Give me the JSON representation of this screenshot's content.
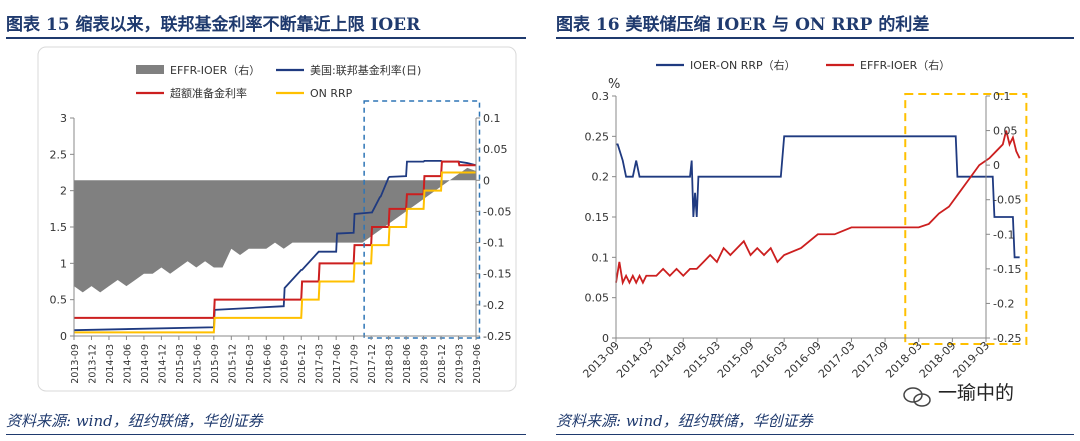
{
  "left": {
    "title": "图表 15   缩表以来，联邦基金利率不断靠近上限 IOER",
    "source": "资料来源: wind，纽约联储，华创证券"
  },
  "right": {
    "title": "图表 16   美联储压缩 IOER 与 ON RRP 的利差",
    "source": "资料来源: wind，纽约联储，华创证券"
  },
  "watermark": "一瑜中的",
  "colors": {
    "gray": "#808080",
    "navy": "#1f3a80",
    "red": "#cc1f1f",
    "yellow": "#ffc000",
    "blue_dash": "#2e75b6",
    "gold_dash": "#ffc000",
    "title": "#1f3a6e"
  },
  "chart_data": [
    {
      "type": "line",
      "x_ticks": [
        "2013-09",
        "2013-12",
        "2014-03",
        "2014-06",
        "2014-09",
        "2014-12",
        "2015-03",
        "2015-06",
        "2015-09",
        "2015-12",
        "2016-03",
        "2016-06",
        "2016-09",
        "2016-12",
        "2017-03",
        "2017-06",
        "2017-09",
        "2017-12",
        "2018-03",
        "2018-06",
        "2018-09",
        "2018-12",
        "2019-03",
        "2019-06"
      ],
      "y_left": {
        "ticks": [
          "0",
          "0.5",
          "1",
          "1.5",
          "2",
          "2.5",
          "3"
        ],
        "lim": [
          0,
          3
        ]
      },
      "y_right": {
        "ticks": [
          "0.1",
          "0.05",
          "0",
          "-0.05",
          "-0.1",
          "-0.15",
          "-0.2",
          "-0.25"
        ],
        "lim": [
          -0.25,
          0.1
        ]
      },
      "series": [
        {
          "name": "EFFR-IOER（右）",
          "axis": "right",
          "style": "area",
          "x": [
            0,
            0.5,
            1,
            1.5,
            2,
            2.5,
            3,
            3.5,
            4,
            4.5,
            5,
            5.5,
            6,
            6.5,
            7,
            7.5,
            8,
            8.5,
            9,
            9.5,
            10,
            10.5,
            11,
            11.5,
            12,
            12.5,
            13,
            13.5,
            14,
            14.5,
            15,
            15.5,
            16,
            16.5,
            17,
            17.5,
            18,
            18.5,
            19,
            19.5,
            20,
            20.5,
            21,
            21.5,
            22,
            22.5,
            23
          ],
          "values": [
            -0.17,
            -0.18,
            -0.17,
            -0.18,
            -0.17,
            -0.16,
            -0.17,
            -0.16,
            -0.15,
            -0.15,
            -0.14,
            -0.15,
            -0.14,
            -0.13,
            -0.14,
            -0.13,
            -0.14,
            -0.14,
            -0.11,
            -0.12,
            -0.11,
            -0.11,
            -0.11,
            -0.1,
            -0.11,
            -0.1,
            -0.1,
            -0.1,
            -0.1,
            -0.1,
            -0.1,
            -0.1,
            -0.1,
            -0.1,
            -0.09,
            -0.08,
            -0.07,
            -0.06,
            -0.05,
            -0.04,
            -0.03,
            -0.02,
            -0.01,
            0,
            0.01,
            0.02,
            0.015
          ]
        },
        {
          "name": "美国:联邦基金利率(日)",
          "axis": "left",
          "x": [
            0,
            8,
            8.05,
            12,
            12.05,
            13,
            13.05,
            14,
            14.05,
            15,
            15.05,
            16,
            16.05,
            17,
            17.05,
            17.5,
            17.55,
            18,
            18.05,
            19,
            19.05,
            20,
            20.05,
            21,
            21.05,
            22,
            22.5,
            23
          ],
          "values": [
            0.08,
            0.12,
            0.36,
            0.41,
            0.66,
            0.91,
            0.91,
            1.16,
            1.16,
            1.16,
            1.41,
            1.42,
            1.68,
            1.7,
            1.7,
            1.91,
            1.92,
            2.18,
            2.19,
            2.2,
            2.4,
            2.4,
            2.41,
            2.41,
            2.4,
            2.4,
            2.38,
            2.35
          ]
        },
        {
          "name": "超额准备金利率",
          "axis": "left",
          "x": [
            0,
            8,
            8.05,
            13,
            13.05,
            14,
            14.05,
            16,
            16.05,
            17,
            17.05,
            18,
            18.05,
            19,
            19.05,
            20,
            20.05,
            21,
            21.05,
            22,
            22.05,
            23
          ],
          "values": [
            0.25,
            0.25,
            0.5,
            0.5,
            0.75,
            0.75,
            1.0,
            1.0,
            1.25,
            1.25,
            1.5,
            1.5,
            1.75,
            1.75,
            1.95,
            1.95,
            2.2,
            2.2,
            2.4,
            2.4,
            2.35,
            2.35
          ]
        },
        {
          "name": "ON RRP",
          "axis": "left",
          "x": [
            0,
            8,
            8.05,
            13,
            13.05,
            14,
            14.05,
            16,
            16.05,
            17,
            17.05,
            18,
            18.05,
            19,
            19.05,
            20,
            20.05,
            21,
            21.05,
            22,
            22.05,
            23
          ],
          "values": [
            0.05,
            0.05,
            0.25,
            0.25,
            0.5,
            0.5,
            0.75,
            0.75,
            1.0,
            1.0,
            1.25,
            1.25,
            1.5,
            1.5,
            1.75,
            1.75,
            2.0,
            2.0,
            2.25,
            2.25,
            2.25,
            2.25
          ]
        }
      ],
      "highlight_range": [
        16.6,
        23.2
      ]
    },
    {
      "type": "line",
      "x_ticks": [
        "2013-09",
        "2014-03",
        "2014-09",
        "2015-03",
        "2015-09",
        "2016-03",
        "2016-09",
        "2017-03",
        "2017-09",
        "2018-03",
        "2018-09",
        "2019-03"
      ],
      "y_left": {
        "label": "%",
        "ticks": [
          "0",
          "0.05",
          "0.1",
          "0.15",
          "0.2",
          "0.25",
          "0.3"
        ],
        "lim": [
          0,
          0.3
        ]
      },
      "y_right": {
        "ticks": [
          "0.1",
          "0.05",
          "0",
          "-0.05",
          "-0.1",
          "-0.15",
          "-0.2",
          "-0.25"
        ],
        "lim": [
          -0.25,
          0.1
        ]
      },
      "series": [
        {
          "name": "IOER-ON RRP（右）",
          "axis": "left",
          "x": [
            0,
            0.05,
            0.2,
            0.3,
            0.5,
            0.6,
            0.7,
            2.2,
            2.25,
            2.3,
            2.35,
            2.4,
            2.45,
            2.55,
            3.0,
            4.9,
            5.0,
            10.1,
            10.15,
            10.5,
            11.2,
            11.25,
            11.8,
            11.85,
            12.0
          ],
          "values": [
            0.24,
            0.24,
            0.22,
            0.2,
            0.2,
            0.22,
            0.2,
            0.2,
            0.22,
            0.15,
            0.18,
            0.15,
            0.2,
            0.2,
            0.2,
            0.2,
            0.25,
            0.25,
            0.2,
            0.2,
            0.2,
            0.15,
            0.15,
            0.1,
            0.1
          ]
        },
        {
          "name": "EFFR-IOER（右）",
          "axis": "right",
          "x": [
            0,
            0.1,
            0.2,
            0.3,
            0.4,
            0.5,
            0.6,
            0.7,
            0.8,
            0.9,
            1.0,
            1.2,
            1.4,
            1.6,
            1.8,
            2.0,
            2.2,
            2.4,
            2.6,
            2.8,
            3.0,
            3.2,
            3.4,
            3.6,
            3.8,
            4.0,
            4.2,
            4.4,
            4.6,
            4.8,
            5.0,
            5.5,
            6.0,
            6.5,
            7.0,
            7.5,
            8.0,
            8.5,
            9.0,
            9.3,
            9.6,
            9.9,
            10.2,
            10.5,
            10.8,
            11.1,
            11.3,
            11.5,
            11.6,
            11.7,
            11.8,
            11.9,
            12.0
          ],
          "values": [
            -0.17,
            -0.14,
            -0.17,
            -0.16,
            -0.17,
            -0.16,
            -0.17,
            -0.16,
            -0.17,
            -0.16,
            -0.16,
            -0.16,
            -0.15,
            -0.16,
            -0.15,
            -0.16,
            -0.15,
            -0.15,
            -0.14,
            -0.13,
            -0.14,
            -0.12,
            -0.13,
            -0.12,
            -0.11,
            -0.13,
            -0.12,
            -0.13,
            -0.12,
            -0.14,
            -0.13,
            -0.12,
            -0.1,
            -0.1,
            -0.09,
            -0.09,
            -0.09,
            -0.09,
            -0.09,
            -0.085,
            -0.07,
            -0.06,
            -0.04,
            -0.02,
            0,
            0.01,
            0.02,
            0.03,
            0.05,
            0.03,
            0.04,
            0.02,
            0.01
          ]
        }
      ],
      "highlight_range": [
        8.6,
        12.2
      ]
    }
  ]
}
